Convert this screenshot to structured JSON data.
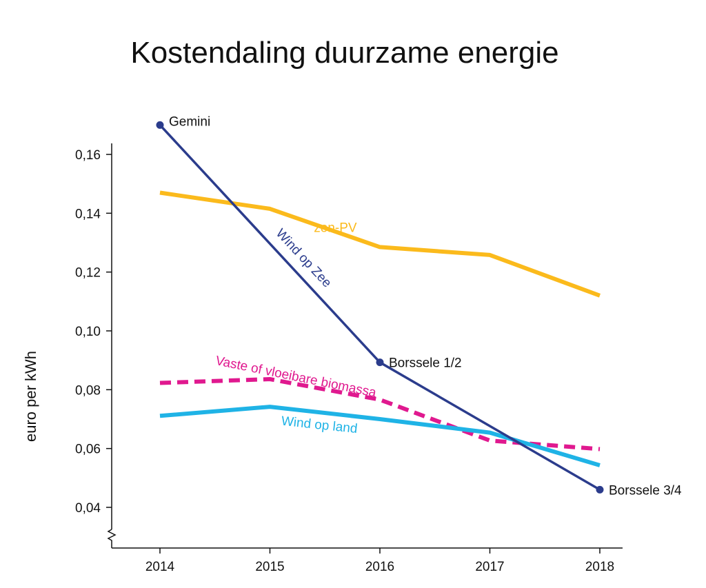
{
  "chart_data": {
    "type": "line",
    "title": "Kostendaling duurzame energie",
    "ylabel": "euro per kWh",
    "xlabel": "",
    "x": [
      2014,
      2015,
      2016,
      2017,
      2018
    ],
    "x_tick_labels": [
      "2014",
      "2015",
      "2016",
      "2017",
      "2018"
    ],
    "ylim": [
      0.04,
      0.16
    ],
    "y_ticks": [
      0.04,
      0.06,
      0.08,
      0.1,
      0.12,
      0.14,
      0.16
    ],
    "y_tick_labels": [
      "0,04",
      "0,06",
      "0,08",
      "0,10",
      "0,12",
      "0,14",
      "0,16"
    ],
    "axis_break": true,
    "grid": false,
    "series": [
      {
        "name": "zon-PV",
        "color": "#FBBA1C",
        "style": "solid",
        "points": [
          [
            2014,
            0.147
          ],
          [
            2015,
            0.1415
          ],
          [
            2016,
            0.1285
          ],
          [
            2017,
            0.1258
          ],
          [
            2018,
            0.112
          ]
        ]
      },
      {
        "name": "Wind op Zee",
        "color": "#2B3C8C",
        "style": "solid",
        "markers": true,
        "points": [
          [
            2014,
            0.17
          ],
          [
            2016,
            0.0893
          ],
          [
            2018,
            0.046
          ]
        ]
      },
      {
        "name": "Vaste of vloeibare biomassa",
        "color": "#E0198F",
        "style": "dashed",
        "points": [
          [
            2014,
            0.0823
          ],
          [
            2015,
            0.0836
          ],
          [
            2016,
            0.0766
          ],
          [
            2017,
            0.0627
          ],
          [
            2018,
            0.0598
          ]
        ]
      },
      {
        "name": "Wind op land",
        "color": "#1FB3E6",
        "style": "solid",
        "points": [
          [
            2014,
            0.0711
          ],
          [
            2015,
            0.0742
          ],
          [
            2016,
            0.07
          ],
          [
            2017,
            0.0654
          ],
          [
            2018,
            0.0543
          ]
        ]
      }
    ],
    "annotations": [
      {
        "text": "Gemini",
        "x": 2014,
        "y": 0.17
      },
      {
        "text": "Borssele 1/2",
        "x": 2016,
        "y": 0.0893
      },
      {
        "text": "Borssele 3/4",
        "x": 2018,
        "y": 0.046
      }
    ]
  }
}
